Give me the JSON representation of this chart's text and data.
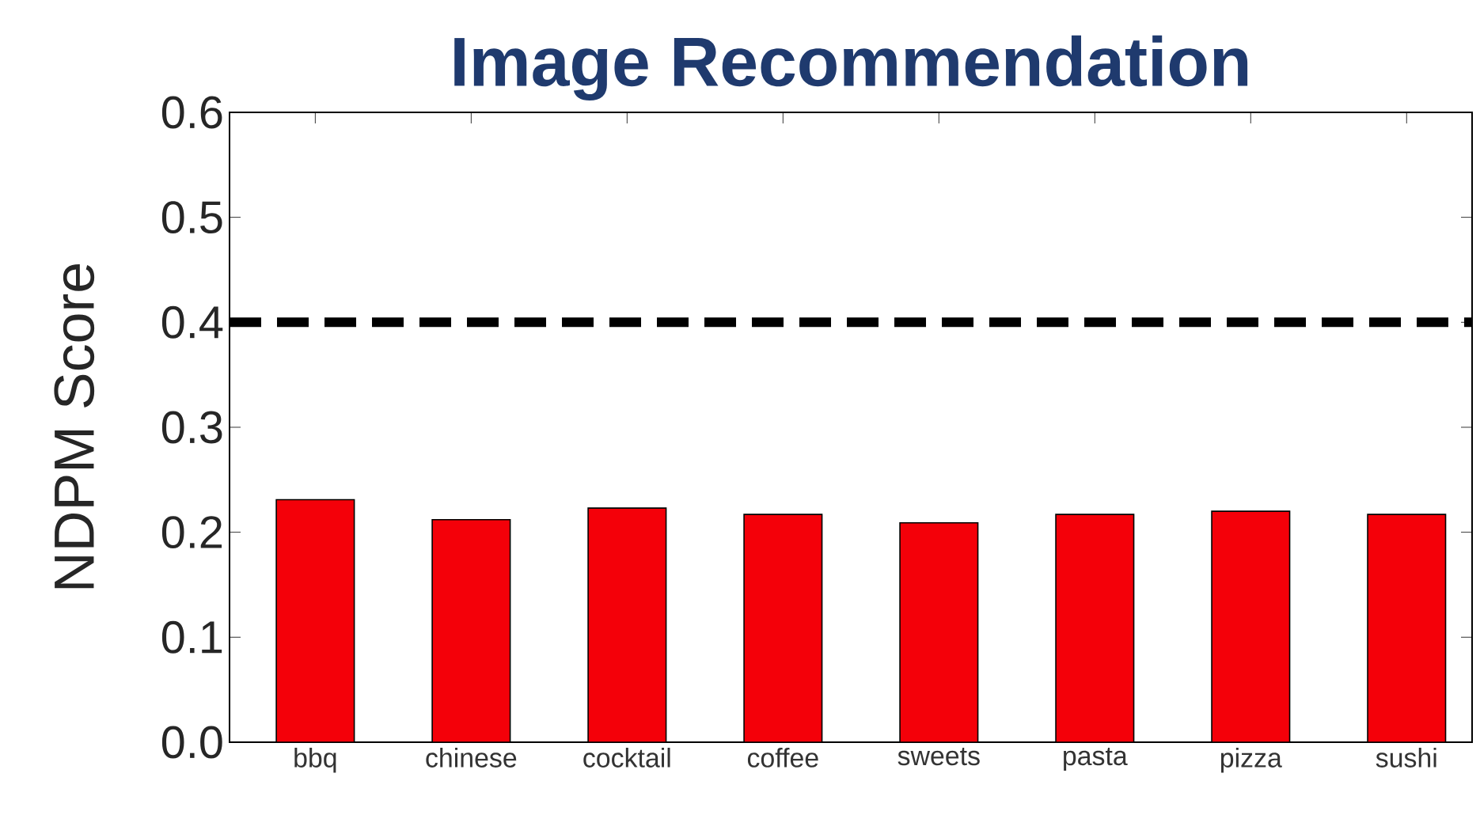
{
  "chart_data": {
    "type": "bar",
    "title": "Image Recommendation",
    "ylabel": "NDPM Score",
    "categories": [
      "bbq",
      "chinese",
      "cocktail",
      "coffee",
      "sweets",
      "pasta",
      "pizza",
      "sushi"
    ],
    "values": [
      0.231,
      0.212,
      0.223,
      0.217,
      0.209,
      0.217,
      0.22,
      0.217
    ],
    "color": "#f40009",
    "ylim": [
      0.0,
      0.6
    ],
    "yticks": [
      {
        "value": 0.0,
        "label": "0.0"
      },
      {
        "value": 0.1,
        "label": "0.1"
      },
      {
        "value": 0.2,
        "label": "0.2"
      },
      {
        "value": 0.3,
        "label": "0.3"
      },
      {
        "value": 0.4,
        "label": "0.4"
      },
      {
        "value": 0.5,
        "label": "0.5"
      },
      {
        "value": 0.6,
        "label": "0.6"
      }
    ],
    "ref_lines": [
      {
        "axis": "y",
        "value": 0.4,
        "color": "#000000",
        "line_style": "dashed"
      }
    ],
    "grid": false
  }
}
